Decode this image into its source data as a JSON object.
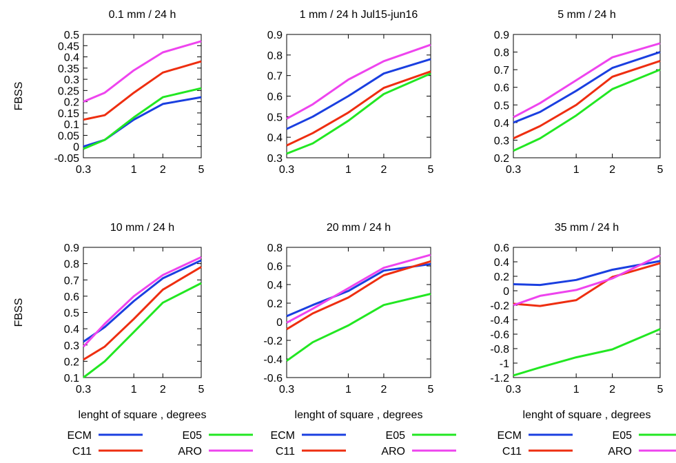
{
  "colors": {
    "ECM": "#1a3fe0",
    "C11": "#ee2e10",
    "E05": "#22e722",
    "ARO": "#ee44ee"
  },
  "legend": [
    {
      "label": "ECM",
      "color": "#1a3fe0"
    },
    {
      "label": "E05",
      "color": "#22e722"
    },
    {
      "label": "C11",
      "color": "#ee2e10"
    },
    {
      "label": "ARO",
      "color": "#ee44ee"
    }
  ],
  "chart_data": [
    {
      "type": "line",
      "title": "0.1 mm / 24 h",
      "ylabel": "FBSS",
      "xlabel": "",
      "xscale": "log",
      "x": [
        0.3,
        0.5,
        1,
        2,
        5
      ],
      "xticks": [
        "0.3",
        "1",
        "2",
        "5"
      ],
      "xtick_values": [
        0.3,
        1,
        2,
        5
      ],
      "ylim": [
        -0.05,
        0.5
      ],
      "yticks": [
        "-0.05",
        "0",
        "0.05",
        "0.1",
        "0.15",
        "0.2",
        "0.25",
        "0.3",
        "0.35",
        "0.4",
        "0.45",
        "0.5"
      ],
      "ytick_values": [
        -0.05,
        0,
        0.05,
        0.1,
        0.15,
        0.2,
        0.25,
        0.3,
        0.35,
        0.4,
        0.45,
        0.5
      ],
      "series": [
        {
          "name": "ECM",
          "values": [
            0.0,
            0.03,
            0.12,
            0.19,
            0.22
          ]
        },
        {
          "name": "E05",
          "values": [
            -0.01,
            0.03,
            0.13,
            0.22,
            0.26
          ]
        },
        {
          "name": "C11",
          "values": [
            0.12,
            0.14,
            0.24,
            0.33,
            0.38
          ]
        },
        {
          "name": "ARO",
          "values": [
            0.2,
            0.24,
            0.34,
            0.42,
            0.47
          ]
        }
      ]
    },
    {
      "type": "line",
      "title": "1 mm / 24 h Jul15-jun16",
      "ylabel": "",
      "xlabel": "",
      "xscale": "log",
      "x": [
        0.3,
        0.5,
        1,
        2,
        5
      ],
      "xticks": [
        "0.3",
        "1",
        "2",
        "5"
      ],
      "xtick_values": [
        0.3,
        1,
        2,
        5
      ],
      "ylim": [
        0.3,
        0.9
      ],
      "yticks": [
        "0.3",
        "0.4",
        "0.5",
        "0.6",
        "0.7",
        "0.8",
        "0.9"
      ],
      "ytick_values": [
        0.3,
        0.4,
        0.5,
        0.6,
        0.7,
        0.8,
        0.9
      ],
      "series": [
        {
          "name": "ECM",
          "values": [
            0.44,
            0.5,
            0.6,
            0.71,
            0.78
          ]
        },
        {
          "name": "E05",
          "values": [
            0.32,
            0.37,
            0.48,
            0.61,
            0.71
          ]
        },
        {
          "name": "C11",
          "values": [
            0.36,
            0.42,
            0.52,
            0.64,
            0.72
          ]
        },
        {
          "name": "ARO",
          "values": [
            0.49,
            0.56,
            0.68,
            0.77,
            0.85
          ]
        }
      ]
    },
    {
      "type": "line",
      "title": "5 mm / 24 h",
      "ylabel": "",
      "xlabel": "",
      "xscale": "log",
      "x": [
        0.3,
        0.5,
        1,
        2,
        5
      ],
      "xticks": [
        "0.3",
        "1",
        "2",
        "5"
      ],
      "xtick_values": [
        0.3,
        1,
        2,
        5
      ],
      "ylim": [
        0.2,
        0.9
      ],
      "yticks": [
        "0.2",
        "0.3",
        "0.4",
        "0.5",
        "0.6",
        "0.7",
        "0.8",
        "0.9"
      ],
      "ytick_values": [
        0.2,
        0.3,
        0.4,
        0.5,
        0.6,
        0.7,
        0.8,
        0.9
      ],
      "series": [
        {
          "name": "ECM",
          "values": [
            0.4,
            0.46,
            0.58,
            0.71,
            0.8
          ]
        },
        {
          "name": "E05",
          "values": [
            0.24,
            0.31,
            0.44,
            0.59,
            0.7
          ]
        },
        {
          "name": "C11",
          "values": [
            0.31,
            0.38,
            0.5,
            0.66,
            0.75
          ]
        },
        {
          "name": "ARO",
          "values": [
            0.43,
            0.51,
            0.64,
            0.77,
            0.85
          ]
        }
      ]
    },
    {
      "type": "line",
      "title": "10 mm / 24 h",
      "ylabel": "FBSS",
      "xlabel": "lenght of square , degrees",
      "xscale": "log",
      "x": [
        0.3,
        0.5,
        1,
        2,
        5
      ],
      "xticks": [
        "0.3",
        "1",
        "2",
        "5"
      ],
      "xtick_values": [
        0.3,
        1,
        2,
        5
      ],
      "ylim": [
        0.1,
        0.9
      ],
      "yticks": [
        "0.1",
        "0.2",
        "0.3",
        "0.4",
        "0.5",
        "0.6",
        "0.7",
        "0.8",
        "0.9"
      ],
      "ytick_values": [
        0.1,
        0.2,
        0.3,
        0.4,
        0.5,
        0.6,
        0.7,
        0.8,
        0.9
      ],
      "series": [
        {
          "name": "ECM",
          "values": [
            0.32,
            0.41,
            0.57,
            0.71,
            0.82
          ]
        },
        {
          "name": "E05",
          "values": [
            0.1,
            0.2,
            0.38,
            0.56,
            0.68
          ]
        },
        {
          "name": "C11",
          "values": [
            0.21,
            0.29,
            0.46,
            0.64,
            0.78
          ]
        },
        {
          "name": "ARO",
          "values": [
            0.29,
            0.43,
            0.6,
            0.73,
            0.84
          ]
        }
      ]
    },
    {
      "type": "line",
      "title": "20 mm / 24 h",
      "ylabel": "",
      "xlabel": "lenght of square , degrees",
      "xscale": "log",
      "x": [
        0.3,
        0.5,
        1,
        2,
        5
      ],
      "xticks": [
        "0.3",
        "1",
        "2",
        "5"
      ],
      "xtick_values": [
        0.3,
        1,
        2,
        5
      ],
      "ylim": [
        -0.6,
        0.8
      ],
      "yticks": [
        "-0.6",
        "-0.4",
        "-0.2",
        "0",
        "0.2",
        "0.4",
        "0.6",
        "0.8"
      ],
      "ytick_values": [
        -0.6,
        -0.4,
        -0.2,
        0,
        0.2,
        0.4,
        0.6,
        0.8
      ],
      "series": [
        {
          "name": "ECM",
          "values": [
            0.06,
            0.18,
            0.33,
            0.55,
            0.62
          ]
        },
        {
          "name": "E05",
          "values": [
            -0.42,
            -0.22,
            -0.04,
            0.18,
            0.3
          ]
        },
        {
          "name": "C11",
          "values": [
            -0.08,
            0.09,
            0.26,
            0.5,
            0.65
          ]
        },
        {
          "name": "ARO",
          "values": [
            -0.01,
            0.14,
            0.36,
            0.58,
            0.72
          ]
        }
      ]
    },
    {
      "type": "line",
      "title": "35 mm / 24 h",
      "ylabel": "",
      "xlabel": "lenght of square , degrees",
      "xscale": "log",
      "x": [
        0.3,
        0.5,
        1,
        2,
        5
      ],
      "xticks": [
        "0.3",
        "1",
        "2",
        "5"
      ],
      "xtick_values": [
        0.3,
        1,
        2,
        5
      ],
      "ylim": [
        -1.2,
        0.6
      ],
      "yticks": [
        "-1.2",
        "-1",
        "-0.8",
        "-0.6",
        "-0.4",
        "-0.2",
        "0",
        "0.2",
        "0.4",
        "0.6"
      ],
      "ytick_values": [
        -1.2,
        -1,
        -0.8,
        -0.6,
        -0.4,
        -0.2,
        0,
        0.2,
        0.4,
        0.6
      ],
      "series": [
        {
          "name": "ECM",
          "values": [
            0.09,
            0.08,
            0.15,
            0.29,
            0.41
          ]
        },
        {
          "name": "E05",
          "values": [
            -1.17,
            -1.06,
            -0.92,
            -0.81,
            -0.53
          ]
        },
        {
          "name": "C11",
          "values": [
            -0.18,
            -0.21,
            -0.13,
            0.19,
            0.38
          ]
        },
        {
          "name": "ARO",
          "values": [
            -0.2,
            -0.07,
            0.01,
            0.17,
            0.49
          ]
        }
      ]
    }
  ]
}
